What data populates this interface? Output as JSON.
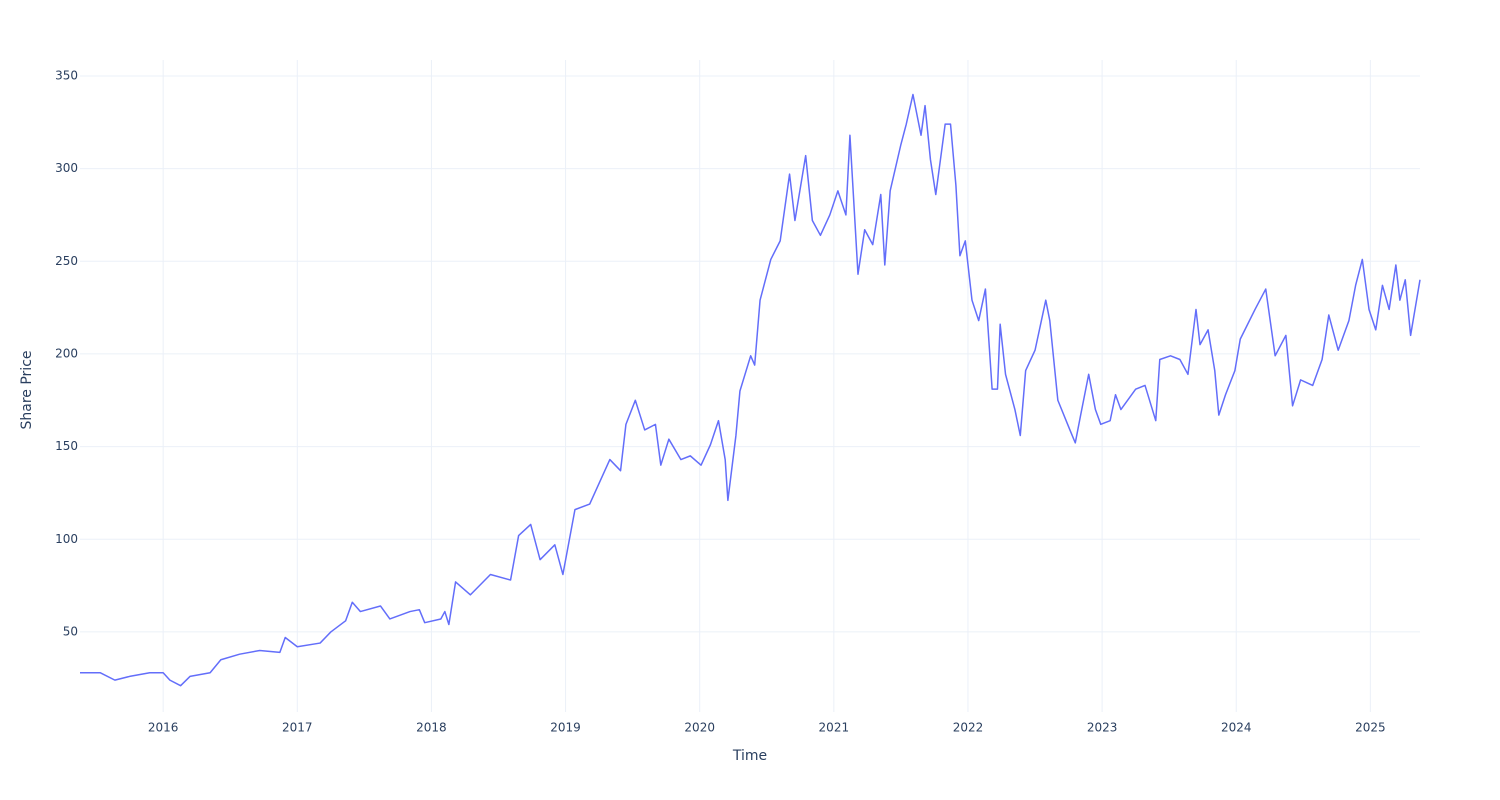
{
  "chart_data": {
    "type": "line",
    "x_label": "Time",
    "y_label": "Share Price",
    "x": [
      2015.38,
      2015.53,
      2015.64,
      2015.75,
      2015.9,
      2016.0,
      2016.05,
      2016.13,
      2016.2,
      2016.35,
      2016.43,
      2016.57,
      2016.72,
      2016.87,
      2016.91,
      2017.0,
      2017.17,
      2017.25,
      2017.36,
      2017.41,
      2017.47,
      2017.62,
      2017.69,
      2017.84,
      2017.91,
      2017.95,
      2018.07,
      2018.1,
      2018.13,
      2018.18,
      2018.29,
      2018.44,
      2018.59,
      2018.65,
      2018.74,
      2018.81,
      2018.92,
      2018.98,
      2019.07,
      2019.18,
      2019.33,
      2019.41,
      2019.45,
      2019.52,
      2019.59,
      2019.67,
      2019.71,
      2019.77,
      2019.86,
      2019.93,
      2020.01,
      2020.08,
      2020.14,
      2020.19,
      2020.21,
      2020.27,
      2020.3,
      2020.38,
      2020.41,
      2020.45,
      2020.53,
      2020.6,
      2020.67,
      2020.71,
      2020.79,
      2020.84,
      2020.9,
      2020.97,
      2021.03,
      2021.09,
      2021.12,
      2021.18,
      2021.23,
      2021.29,
      2021.35,
      2021.38,
      2021.42,
      2021.5,
      2021.54,
      2021.59,
      2021.65,
      2021.68,
      2021.72,
      2021.76,
      2021.83,
      2021.87,
      2021.91,
      2021.94,
      2021.98,
      2022.03,
      2022.08,
      2022.13,
      2022.18,
      2022.22,
      2022.24,
      2022.28,
      2022.35,
      2022.39,
      2022.43,
      2022.5,
      2022.58,
      2022.61,
      2022.67,
      2022.76,
      2022.8,
      2022.84,
      2022.9,
      2022.95,
      2022.99,
      2023.06,
      2023.1,
      2023.14,
      2023.25,
      2023.32,
      2023.4,
      2023.43,
      2023.51,
      2023.58,
      2023.64,
      2023.7,
      2023.73,
      2023.79,
      2023.84,
      2023.87,
      2023.92,
      2023.99,
      2024.03,
      2024.14,
      2024.22,
      2024.29,
      2024.37,
      2024.42,
      2024.48,
      2024.57,
      2024.64,
      2024.69,
      2024.76,
      2024.84,
      2024.89,
      2024.94,
      2024.99,
      2025.04,
      2025.09,
      2025.14,
      2025.19,
      2025.22,
      2025.26,
      2025.3,
      2025.37
    ],
    "values": [
      28,
      28,
      24,
      26,
      28,
      28,
      24,
      21,
      26,
      28,
      35,
      38,
      40,
      39,
      47,
      42,
      44,
      50,
      56,
      66,
      61,
      64,
      57,
      61,
      62,
      55,
      57,
      61,
      54,
      77,
      70,
      81,
      78,
      102,
      108,
      89,
      97,
      81,
      116,
      119,
      143,
      137,
      162,
      175,
      159,
      162,
      140,
      154,
      143,
      145,
      140,
      151,
      164,
      143,
      121,
      156,
      180,
      199,
      194,
      229,
      251,
      261,
      297,
      272,
      307,
      272,
      264,
      275,
      288,
      275,
      318,
      243,
      267,
      259,
      286,
      248,
      288,
      313,
      324,
      340,
      318,
      334,
      305,
      286,
      324,
      324,
      291,
      253,
      261,
      229,
      218,
      235,
      181,
      181,
      216,
      189,
      170,
      156,
      191,
      202,
      229,
      218,
      175,
      159,
      152,
      167,
      189,
      170,
      162,
      164,
      178,
      170,
      181,
      183,
      164,
      197,
      199,
      197,
      189,
      224,
      205,
      213,
      191,
      167,
      178,
      191,
      208,
      224,
      235,
      199,
      210,
      172,
      186,
      183,
      197,
      221,
      202,
      218,
      237,
      251,
      224,
      213,
      237,
      224,
      248,
      229,
      240,
      210,
      240
    ],
    "color": "#636efa",
    "xlim": [
      2015.38,
      2025.37
    ],
    "xticks": [
      2016,
      2017,
      2018,
      2019,
      2020,
      2021,
      2022,
      2023,
      2024,
      2025
    ],
    "ylim": [
      6.8,
      358.6
    ],
    "yticks": [
      50,
      100,
      150,
      200,
      250,
      300,
      350
    ],
    "grid": true
  }
}
